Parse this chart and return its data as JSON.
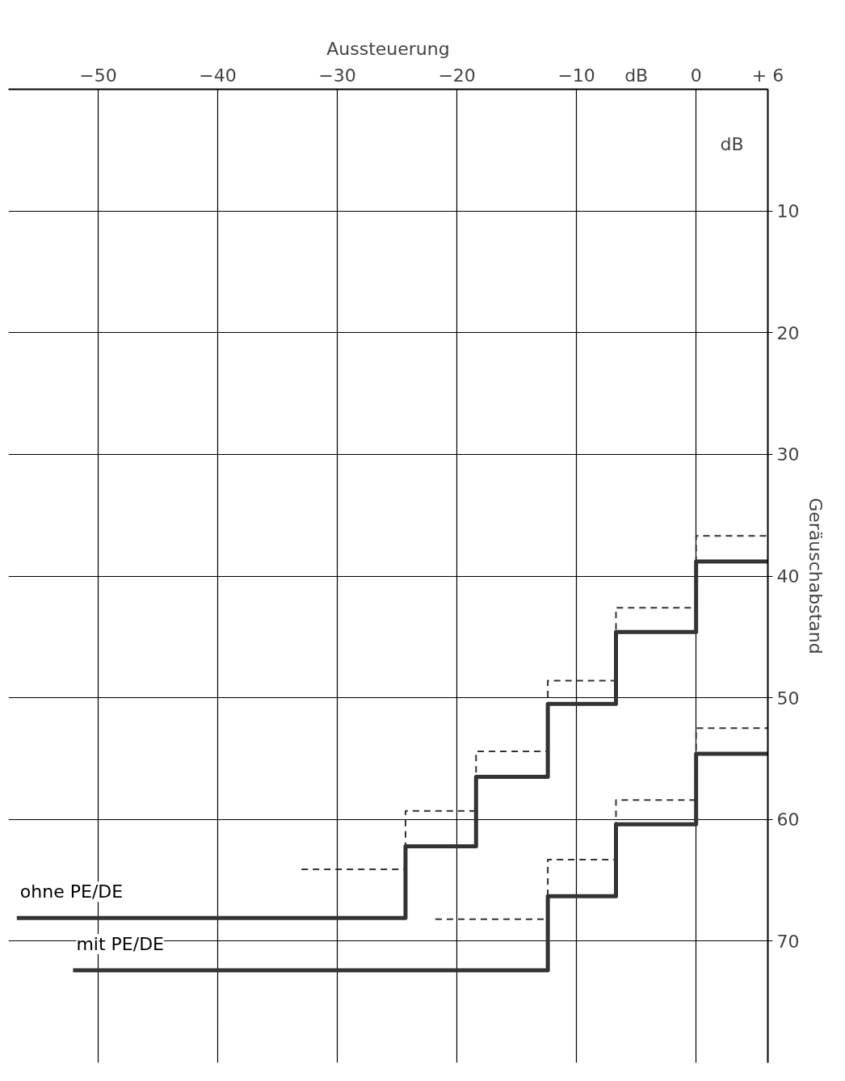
{
  "chart_data": {
    "type": "step",
    "xlabel": "Aussteuerung",
    "ylabel": "Geräuschabstand",
    "annotations": [
      "dB",
      "dB"
    ],
    "xlim": [
      -57.5,
      6
    ],
    "xticks": [
      -50,
      -40,
      -30,
      -20,
      -10,
      0,
      {
        "value": 6,
        "label": "+ 6"
      }
    ],
    "ylim": [
      80,
      0
    ],
    "yticks": [
      10,
      20,
      30,
      40,
      50,
      60,
      70
    ],
    "grid": true,
    "legend": false,
    "marker": "none",
    "series": [
      {
        "name": "ohne PE/DE",
        "color": "#333333",
        "line_style": "solid",
        "x": [
          -56.8,
          -24.3,
          -18.4,
          -12.4,
          -6.7,
          0,
          6
        ],
        "values": [
          68.1,
          62.2,
          56.5,
          50.5,
          44.6,
          38.8,
          38.8
        ]
      },
      {
        "name": "mit PE/DE",
        "color": "#333333",
        "line_style": "solid",
        "x": [
          -52.1,
          -12.4,
          -6.7,
          0,
          6
        ],
        "values": [
          72.4,
          66.3,
          60.4,
          54.6,
          54.6
        ]
      },
      {
        "color": "#333333",
        "line_style": "dashed",
        "x": [
          -33,
          -24.3,
          -18.4,
          -12.4,
          -6.7,
          0,
          6
        ],
        "values": [
          64.1,
          59.3,
          54.4,
          48.6,
          42.6,
          36.7,
          36.7
        ]
      },
      {
        "color": "#333333",
        "line_style": "dashed",
        "x": [
          -21.8,
          -12.4,
          -6.7,
          0,
          6
        ],
        "values": [
          68.2,
          63.3,
          58.4,
          52.5,
          52.5
        ]
      }
    ]
  }
}
